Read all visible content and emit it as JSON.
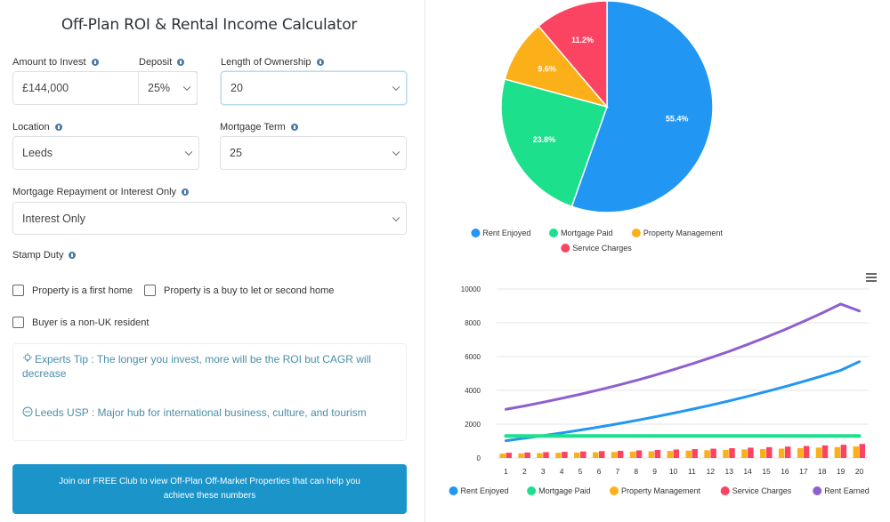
{
  "calculator": {
    "title": "Off-Plan ROI & Rental Income Calculator",
    "amount": {
      "label": "Amount to Invest",
      "value": "£144,000"
    },
    "deposit": {
      "label": "Deposit",
      "value": "25%"
    },
    "length": {
      "label": "Length of Ownership",
      "value": "20"
    },
    "location": {
      "label": "Location",
      "value": "Leeds"
    },
    "mortgage_term": {
      "label": "Mortgage Term",
      "value": "25"
    },
    "repayment": {
      "label": "Mortgage Repayment or Interest Only",
      "value": "Interest Only"
    },
    "stamp_duty": {
      "label": "Stamp Duty"
    },
    "checkboxes": {
      "first_home": "Property is a first home",
      "buy_to_let": "Property is a buy to let or second home",
      "non_uk": "Buyer is a non-UK resident"
    },
    "tips": {
      "expert": "Experts Tip : The longer you invest, more will be the ROI but CAGR will decrease",
      "usp": "Leeds USP : Major hub for international business, culture, and tourism"
    },
    "cta": "Join our FREE Club to view Off-Plan Off-Market Properties that can help you achieve these numbers"
  },
  "colors": {
    "rent_enjoyed": "#2196f3",
    "mortgage_paid": "#1de08c",
    "property_management": "#fbb01a",
    "service_charges": "#fb4462",
    "rent_earned": "#8e5fd0"
  },
  "chart_data": [
    {
      "type": "pie",
      "labels": [
        "Rent Enjoyed",
        "Mortgage Paid",
        "Property Management",
        "Service Charges"
      ],
      "values": [
        55.4,
        23.8,
        9.6,
        11.2
      ],
      "data_labels": [
        "55.4%",
        "23.8%",
        "9.6%",
        "11.2%"
      ],
      "legend": "bottom"
    },
    {
      "type": "line",
      "categories": [
        "1",
        "2",
        "3",
        "4",
        "5",
        "6",
        "7",
        "8",
        "9",
        "10",
        "11",
        "12",
        "13",
        "14",
        "15",
        "16",
        "17",
        "18",
        "19",
        "20"
      ],
      "ylim": [
        0,
        10000
      ],
      "yticks": [
        "0",
        "2000",
        "4000",
        "6000",
        "8000",
        "10000"
      ],
      "grid": true,
      "legend": "bottom",
      "series": [
        {
          "name": "Rent Enjoyed",
          "type": "line",
          "values": [
            1020,
            1170,
            1320,
            1480,
            1650,
            1830,
            2020,
            2220,
            2430,
            2650,
            2880,
            3120,
            3380,
            3650,
            3930,
            4220,
            4530,
            4850,
            5190,
            5700
          ]
        },
        {
          "name": "Mortgage Paid",
          "type": "line",
          "values": [
            1300,
            1300,
            1300,
            1300,
            1300,
            1300,
            1300,
            1300,
            1300,
            1300,
            1300,
            1300,
            1300,
            1300,
            1300,
            1300,
            1300,
            1300,
            1300,
            1300
          ]
        },
        {
          "name": "Property Management",
          "type": "bar",
          "values": [
            260,
            275,
            290,
            305,
            320,
            340,
            355,
            375,
            395,
            415,
            435,
            455,
            480,
            505,
            530,
            555,
            585,
            615,
            645,
            680
          ]
        },
        {
          "name": "Service Charges",
          "type": "bar",
          "values": [
            310,
            325,
            345,
            365,
            385,
            405,
            425,
            450,
            475,
            500,
            525,
            550,
            580,
            610,
            640,
            675,
            710,
            745,
            785,
            830
          ]
        },
        {
          "name": "Rent Earned",
          "type": "line",
          "values": [
            2880,
            3080,
            3300,
            3530,
            3770,
            4030,
            4300,
            4590,
            4900,
            5230,
            5570,
            5930,
            6310,
            6720,
            7150,
            7600,
            8080,
            8580,
            9110,
            8700
          ]
        }
      ]
    }
  ]
}
